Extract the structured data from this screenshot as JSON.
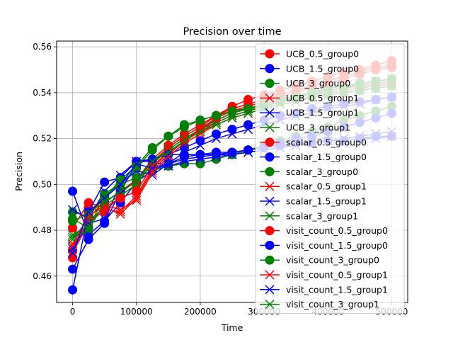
{
  "chart_data": {
    "type": "line",
    "title": "Precision over time",
    "xlabel": "Time",
    "ylabel": "Precision",
    "xlim": [
      -25000,
      525000
    ],
    "ylim": [
      0.4485,
      0.5625
    ],
    "x_ticks": [
      0,
      100000,
      200000,
      300000,
      400000,
      500000
    ],
    "x_tick_labels": [
      "0",
      "100000",
      "200000",
      "300000",
      "400000",
      "500000"
    ],
    "y_ticks": [
      0.46,
      0.48,
      0.5,
      0.52,
      0.54,
      0.56
    ],
    "y_tick_labels": [
      "0.46",
      "0.48",
      "0.50",
      "0.52",
      "0.54",
      "0.56"
    ],
    "grid": true,
    "legend_position": "top-right",
    "x": [
      0,
      25000,
      50000,
      75000,
      100000,
      125000,
      150000,
      175000,
      200000,
      225000,
      250000,
      275000,
      300000,
      325000,
      350000,
      375000,
      400000,
      425000,
      450000,
      475000,
      500000
    ],
    "series": [
      {
        "name": "UCB_0.5_group0",
        "color": "#ff0000",
        "marker": "o",
        "values": [
          0.471,
          0.488,
          0.492,
          0.497,
          0.502,
          0.511,
          0.517,
          0.522,
          0.526,
          0.53,
          0.534,
          0.537,
          0.539,
          0.541,
          0.543,
          0.545,
          0.547,
          0.549,
          0.55,
          0.552,
          0.554
        ]
      },
      {
        "name": "UCB_1.5_group0",
        "color": "#0000ff",
        "marker": "o",
        "values": [
          0.497,
          0.478,
          0.484,
          0.492,
          0.501,
          0.506,
          0.509,
          0.512,
          0.513,
          0.513,
          0.514,
          0.515,
          0.516,
          0.517,
          0.518,
          0.518,
          0.519,
          0.519,
          0.52,
          0.521,
          0.521
        ]
      },
      {
        "name": "UCB_3_group0",
        "color": "#008000",
        "marker": "o",
        "values": [
          0.488,
          0.486,
          0.496,
          0.5,
          0.503,
          0.506,
          0.508,
          0.509,
          0.509,
          0.511,
          0.513,
          0.515,
          0.517,
          0.519,
          0.521,
          0.523,
          0.525,
          0.528,
          0.53,
          0.532,
          0.534
        ]
      },
      {
        "name": "UCB_0.5_group1",
        "color": "#ff0000",
        "marker": "x",
        "values": [
          0.473,
          0.484,
          0.49,
          0.487,
          0.494,
          0.506,
          0.513,
          0.519,
          0.524,
          0.528,
          0.531,
          0.533,
          0.535,
          0.537,
          0.538,
          0.54,
          0.541,
          0.542,
          0.543,
          0.544,
          0.545
        ]
      },
      {
        "name": "UCB_1.5_group1",
        "color": "#0000ff",
        "marker": "x",
        "values": [
          0.489,
          0.485,
          0.497,
          0.504,
          0.51,
          0.51,
          0.508,
          0.51,
          0.511,
          0.512,
          0.513,
          0.514,
          0.515,
          0.516,
          0.517,
          0.518,
          0.519,
          0.519,
          0.52,
          0.52,
          0.521
        ]
      },
      {
        "name": "UCB_3_group1",
        "color": "#008000",
        "marker": "x",
        "values": [
          0.476,
          0.485,
          0.493,
          0.496,
          0.502,
          0.51,
          0.516,
          0.521,
          0.525,
          0.528,
          0.531,
          0.533,
          0.535,
          0.537,
          0.539,
          0.54,
          0.542,
          0.543,
          0.544,
          0.545,
          0.546
        ]
      },
      {
        "name": "scalar_0.5_group0",
        "color": "#ff0000",
        "marker": "o",
        "values": [
          0.468,
          0.49,
          0.488,
          0.495,
          0.5,
          0.509,
          0.516,
          0.521,
          0.525,
          0.53,
          0.533,
          0.535,
          0.537,
          0.539,
          0.541,
          0.543,
          0.545,
          0.547,
          0.549,
          0.551,
          0.552
        ]
      },
      {
        "name": "scalar_1.5_group0",
        "color": "#0000ff",
        "marker": "o",
        "values": [
          0.463,
          0.476,
          0.483,
          0.497,
          0.509,
          0.511,
          0.513,
          0.513,
          0.513,
          0.514,
          0.514,
          0.515,
          0.516,
          0.518,
          0.52,
          0.521,
          0.523,
          0.525,
          0.527,
          0.529,
          0.531
        ]
      },
      {
        "name": "scalar_3_group0",
        "color": "#008000",
        "marker": "o",
        "values": [
          0.485,
          0.481,
          0.495,
          0.5,
          0.507,
          0.515,
          0.521,
          0.526,
          0.528,
          0.53,
          0.532,
          0.533,
          0.534,
          0.536,
          0.537,
          0.538,
          0.539,
          0.54,
          0.541,
          0.542,
          0.543
        ]
      },
      {
        "name": "scalar_0.5_group1",
        "color": "#ff0000",
        "marker": "x",
        "values": [
          0.47,
          0.483,
          0.489,
          0.488,
          0.495,
          0.507,
          0.514,
          0.519,
          0.523,
          0.527,
          0.53,
          0.532,
          0.534,
          0.536,
          0.538,
          0.539,
          0.541,
          0.542,
          0.543,
          0.544,
          0.545
        ]
      },
      {
        "name": "scalar_1.5_group1",
        "color": "#0000ff",
        "marker": "x",
        "values": [
          0.472,
          0.483,
          0.485,
          0.5,
          0.506,
          0.504,
          0.509,
          0.514,
          0.517,
          0.52,
          0.522,
          0.524,
          0.526,
          0.528,
          0.53,
          0.531,
          0.533,
          0.534,
          0.535,
          0.537,
          0.538
        ]
      },
      {
        "name": "scalar_3_group1",
        "color": "#008000",
        "marker": "x",
        "values": [
          0.478,
          0.482,
          0.491,
          0.495,
          0.5,
          0.509,
          0.515,
          0.52,
          0.524,
          0.527,
          0.53,
          0.532,
          0.534,
          0.536,
          0.538,
          0.539,
          0.54,
          0.541,
          0.542,
          0.543,
          0.544
        ]
      },
      {
        "name": "visit_count_0.5_group0",
        "color": "#ff0000",
        "marker": "o",
        "values": [
          0.481,
          0.492,
          0.49,
          0.494,
          0.497,
          0.508,
          0.514,
          0.519,
          0.524,
          0.529,
          0.532,
          0.534,
          0.536,
          0.538,
          0.54,
          0.542,
          0.544,
          0.546,
          0.548,
          0.55,
          0.551
        ]
      },
      {
        "name": "visit_count_1.5_group0",
        "color": "#0000ff",
        "marker": "o",
        "values": [
          0.454,
          0.488,
          0.501,
          0.503,
          0.51,
          0.511,
          0.513,
          0.516,
          0.519,
          0.522,
          0.524,
          0.526,
          0.528,
          0.53,
          0.531,
          0.533,
          0.534,
          0.535,
          0.536,
          0.537,
          0.538
        ]
      },
      {
        "name": "visit_count_3_group0",
        "color": "#008000",
        "marker": "o",
        "values": [
          0.484,
          0.487,
          0.494,
          0.502,
          0.508,
          0.516,
          0.521,
          0.525,
          0.528,
          0.53,
          0.532,
          0.533,
          0.535,
          0.537,
          0.538,
          0.54,
          0.541,
          0.542,
          0.544,
          0.545,
          0.546
        ]
      },
      {
        "name": "visit_count_0.5_group1",
        "color": "#ff0000",
        "marker": "x",
        "values": [
          0.474,
          0.486,
          0.491,
          0.489,
          0.493,
          0.505,
          0.512,
          0.518,
          0.522,
          0.526,
          0.529,
          0.531,
          0.533,
          0.535,
          0.536,
          0.538,
          0.539,
          0.54,
          0.541,
          0.542,
          0.543
        ]
      },
      {
        "name": "visit_count_1.5_group1",
        "color": "#0000ff",
        "marker": "x",
        "values": [
          0.47,
          0.488,
          0.494,
          0.5,
          0.509,
          0.507,
          0.509,
          0.511,
          0.512,
          0.513,
          0.513,
          0.514,
          0.515,
          0.516,
          0.517,
          0.518,
          0.519,
          0.52,
          0.521,
          0.522,
          0.523
        ]
      },
      {
        "name": "visit_count_3_group1",
        "color": "#008000",
        "marker": "x",
        "values": [
          0.477,
          0.48,
          0.492,
          0.497,
          0.501,
          0.51,
          0.514,
          0.519,
          0.523,
          0.526,
          0.529,
          0.531,
          0.533,
          0.535,
          0.536,
          0.538,
          0.539,
          0.54,
          0.541,
          0.542,
          0.543
        ]
      }
    ]
  }
}
